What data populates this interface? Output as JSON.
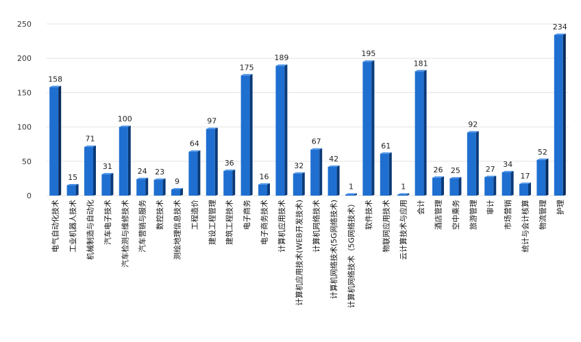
{
  "chart_data": {
    "type": "bar",
    "title": "",
    "xlabel": "",
    "ylabel": "",
    "ylim": [
      0,
      250
    ],
    "yticks": [
      0,
      50,
      100,
      150,
      200,
      250
    ],
    "grid": true,
    "legend": "none",
    "categories": [
      "电气自动化技术",
      "工业机器人技术",
      "机械制造与自动化",
      "汽车电子技术",
      "汽车检测与维修技术",
      "汽车营销与服务",
      "数控技术",
      "测绘地理信息技术",
      "工程造价",
      "建设工程管理",
      "建筑工程技术",
      "电子商务",
      "电子商务技术",
      "计算机应用技术",
      "计算机应用技术(WEB开发技术)",
      "计算机网络技术",
      "计算机网络技术(5G网络技术)",
      "计算机网络技术（5G网络技术）",
      "软件技术",
      "物联网应用技术",
      "云计算技术与应用",
      "会计",
      "酒店管理",
      "空中乘务",
      "旅游管理",
      "审计",
      "市场营销",
      "统计与会计核算",
      "物流管理",
      "护理"
    ],
    "values": [
      158,
      15,
      71,
      31,
      100,
      24,
      23,
      9,
      64,
      97,
      36,
      175,
      16,
      189,
      32,
      67,
      42,
      1,
      195,
      61,
      1,
      181,
      26,
      25,
      92,
      27,
      34,
      17,
      52,
      234
    ],
    "colors": {
      "bar_front": "#1f6fd1",
      "bar_side": "#0a2a5c",
      "bar_side_alt": "#0b3a78",
      "grid": "#e3e3e3"
    }
  }
}
